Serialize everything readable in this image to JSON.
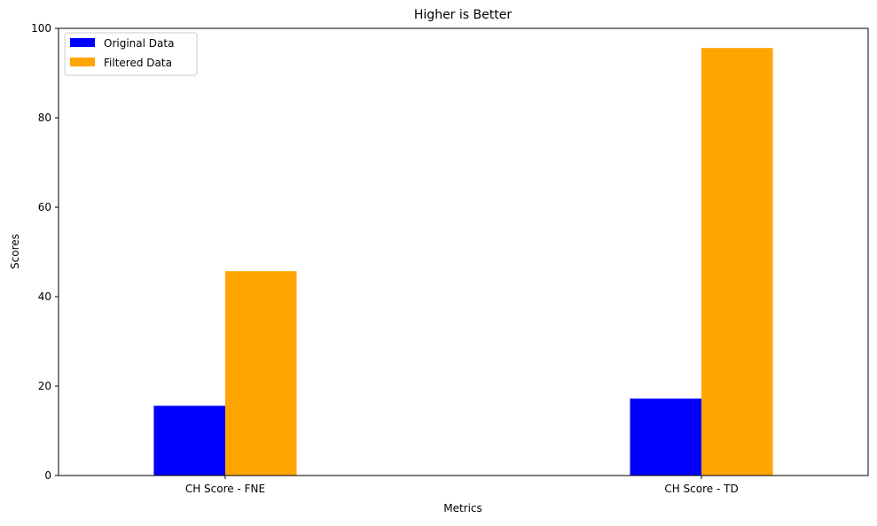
{
  "chart_data": {
    "type": "bar",
    "title": "Higher is Better",
    "xlabel": "Metrics",
    "ylabel": "Scores",
    "categories": [
      "CH Score - FNE",
      "CH Score - TD"
    ],
    "series": [
      {
        "name": "Original Data",
        "values": [
          15.6,
          17.2
        ],
        "color": "#0000ff"
      },
      {
        "name": "Filtered Data",
        "values": [
          45.7,
          95.6
        ],
        "color": "#ffa500"
      }
    ],
    "ylim": [
      0,
      100
    ],
    "yticks": [
      0,
      20,
      40,
      60,
      80,
      100
    ],
    "grid": false,
    "legend": {
      "position": "top-left"
    }
  }
}
